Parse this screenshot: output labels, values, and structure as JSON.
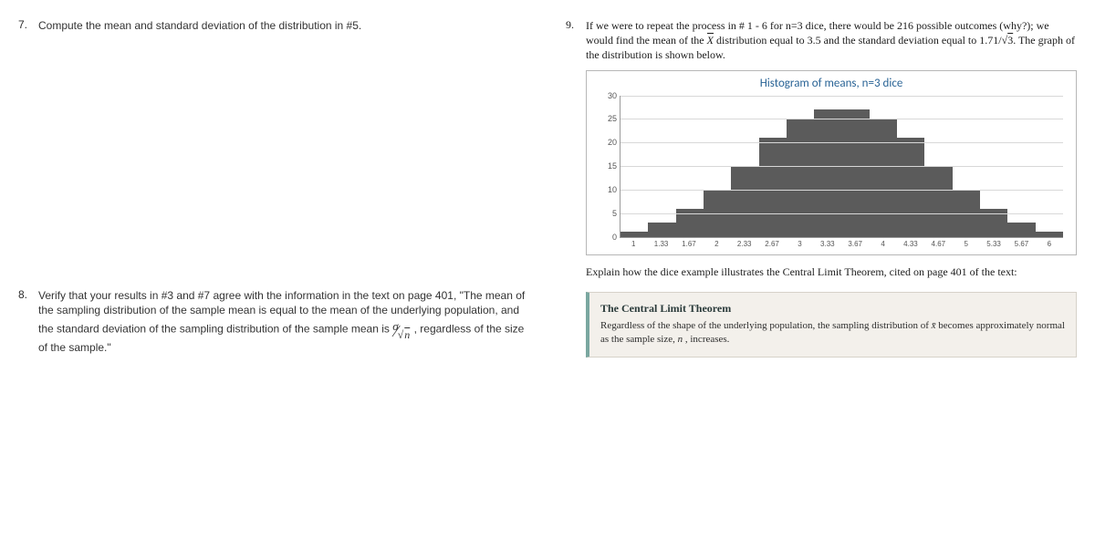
{
  "q7": {
    "num": "7.",
    "text": "Compute the mean and standard deviation of the distribution in #5."
  },
  "q8": {
    "num": "8.",
    "text_a": "Verify that your results in #3 and #7 agree with the information in the text on page 401, \"The mean of the sampling distribution of the sample mean is equal to the mean of the underlying population, and the standard deviation of the sampling distribution of the sample mean is ",
    "text_b": ", regardless of the size of the sample.\""
  },
  "q9": {
    "num": "9.",
    "text_a": "If we were to repeat the process in # 1 - 6 for n=3 dice, there would be 216 possible outcomes (why?); we would find the mean of the  ",
    "text_b": " distribution equal to 3.5 and the standard deviation equal to 1.71/",
    "text_c": ".  The graph of the distribution is shown below."
  },
  "histogram": {
    "title": "Histogram of means, n=3 dice",
    "ymax": 30,
    "yticks": [
      0,
      5,
      10,
      15,
      20,
      25,
      30
    ],
    "categories": [
      "1",
      "1.33",
      "1.67",
      "2",
      "2.33",
      "2.67",
      "3",
      "3.33",
      "3.67",
      "4",
      "4.33",
      "4.67",
      "5",
      "5.33",
      "5.67",
      "6"
    ],
    "values": [
      1,
      3,
      6,
      10,
      15,
      21,
      25,
      27,
      27,
      25,
      21,
      15,
      10,
      6,
      3,
      1
    ],
    "bar_color": "#5b5b5b",
    "grid_color": "#d8d8d8",
    "axis_color": "#9a9a9a",
    "title_color": "#2a6496",
    "background_color": "#ffffff",
    "label_fontsize": 9
  },
  "explain": {
    "text": "Explain how the dice example illustrates the Central Limit Theorem, cited on page 401 of the text:"
  },
  "clt": {
    "title": "The Central Limit Theorem",
    "body_a": "Regardless of the shape of the underlying population, the sampling distribution of ",
    "body_b": " becomes approximately normal as the sample size, ",
    "body_c": ", increases.",
    "n_symbol": "n",
    "box_bg": "#f3f0eb",
    "box_accent": "#7aa7a0"
  },
  "math": {
    "sigma": "σ",
    "root3": "3",
    "n_overline": "n",
    "xbar": "X",
    "xbar_lower": "x̄"
  }
}
